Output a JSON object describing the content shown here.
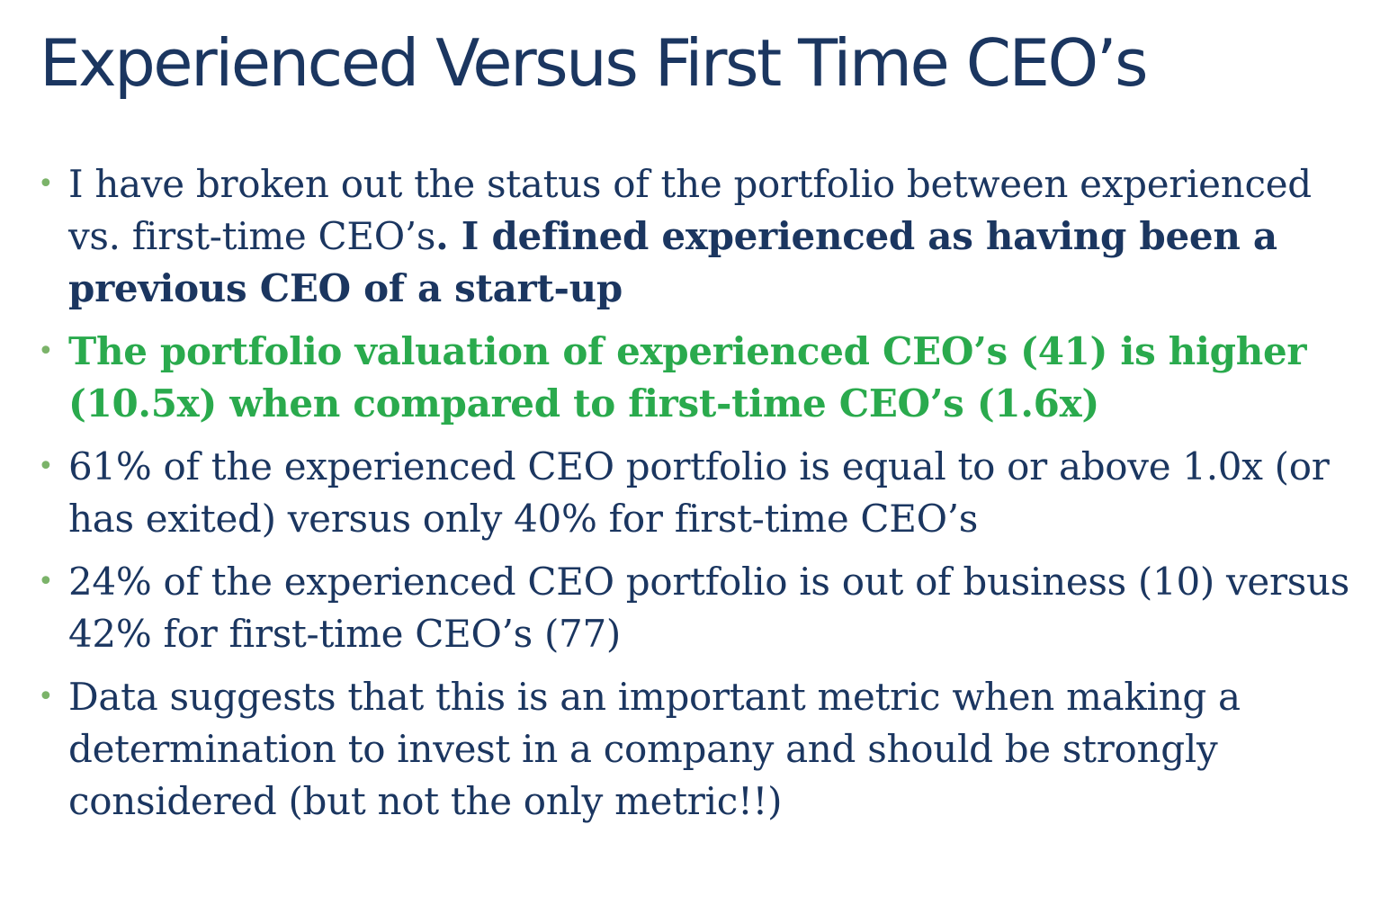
{
  "slide": {
    "title": "Experienced Versus First Time CEO’s",
    "bullets": [
      {
        "text": "I have broken out the status of the portfolio between experienced vs. first-time CEO’s",
        "bold_text": ". I defined experienced as having been a previous CEO of a start-up"
      },
      {
        "text": "The portfolio valuation of experienced CEO’s (41) is higher (10.5x) when compared to first-time CEO’s (1.6x)"
      },
      {
        "text": "61% of the experienced CEO portfolio is equal to or above 1.0x (or has exited) versus only 40% for first-time CEO’s"
      },
      {
        "text": "24% of the experienced CEO portfolio is out of business (10) versus 42% for first-time CEO’s (77)"
      },
      {
        "text": "Data suggests that this is an important metric when making a determination to invest in a company and should be strongly considered (but not the only metric!!)"
      }
    ],
    "bullet_glyph": "•",
    "colors": {
      "title": "#1b3660",
      "body": "#1b3660",
      "highlight": "#2aaa4d",
      "bullet": "#7bb369"
    }
  }
}
